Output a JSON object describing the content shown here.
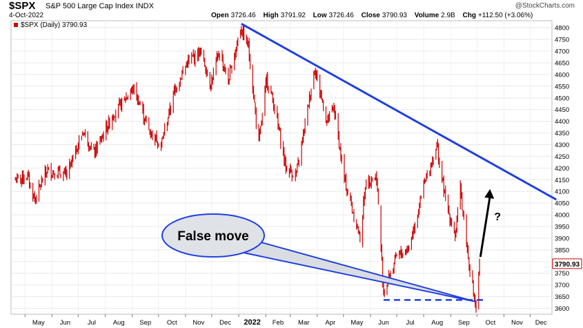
{
  "header": {
    "symbol": "$SPX",
    "description": "S&P 500 Large Cap Index INDX",
    "date": "4-Oct-2022",
    "brand": "@StockCharts.com",
    "ohlc": {
      "open_label": "Open",
      "open": "3726.46",
      "high_label": "High",
      "high": "3791.92",
      "low_label": "Low",
      "low": "3726.46",
      "close_label": "Close",
      "close": "3790.93",
      "volume_label": "Volume",
      "volume": "2.9B",
      "chg_label": "Chg",
      "chg": "+112.50 (+3.06%)"
    },
    "legend": "$SPX (Daily) 3790.93"
  },
  "chart_data": {
    "type": "ohlc-bar",
    "series_color": "#cc0000",
    "x_months": [
      "May",
      "Jun",
      "Jul",
      "Aug",
      "Sep",
      "Oct",
      "Nov",
      "Dec",
      "2022",
      "Feb",
      "Mar",
      "Apr",
      "May",
      "Jun",
      "Jul",
      "Aug",
      "Sep",
      "Oct",
      "Nov",
      "Dec"
    ],
    "y_ticks": [
      3600,
      3650,
      3700,
      3750,
      3800,
      3850,
      3900,
      3950,
      4000,
      4050,
      4100,
      4150,
      4200,
      4250,
      4300,
      4350,
      4400,
      4450,
      4500,
      4550,
      4600,
      4650,
      4700,
      4750,
      4800
    ],
    "y_range": [
      3575,
      4830
    ],
    "last_price_label": "3790.93",
    "price_path": [
      [
        "2021-04-20",
        4150
      ],
      [
        "2021-05-04",
        4165
      ],
      [
        "2021-05-12",
        4065
      ],
      [
        "2021-05-26",
        4190
      ],
      [
        "2021-06-18",
        4170
      ],
      [
        "2021-07-07",
        4360
      ],
      [
        "2021-07-19",
        4260
      ],
      [
        "2021-08-10",
        4430
      ],
      [
        "2021-09-02",
        4540
      ],
      [
        "2021-09-10",
        4470
      ],
      [
        "2021-09-20",
        4360
      ],
      [
        "2021-10-04",
        4300
      ],
      [
        "2021-10-20",
        4540
      ],
      [
        "2021-11-03",
        4650
      ],
      [
        "2021-11-18",
        4700
      ],
      [
        "2021-11-30",
        4560
      ],
      [
        "2021-12-10",
        4700
      ],
      [
        "2021-12-20",
        4570
      ],
      [
        "2022-01-03",
        4800
      ],
      [
        "2022-01-12",
        4720
      ],
      [
        "2022-01-24",
        4300
      ],
      [
        "2022-02-02",
        4580
      ],
      [
        "2022-02-10",
        4480
      ],
      [
        "2022-02-24",
        4200
      ],
      [
        "2022-03-08",
        4170
      ],
      [
        "2022-03-29",
        4630
      ],
      [
        "2022-04-12",
        4400
      ],
      [
        "2022-04-20",
        4460
      ],
      [
        "2022-05-02",
        4150
      ],
      [
        "2022-05-20",
        3900
      ],
      [
        "2022-05-27",
        4150
      ],
      [
        "2022-06-08",
        4160
      ],
      [
        "2022-06-16",
        3670
      ],
      [
        "2022-07-01",
        3820
      ],
      [
        "2022-07-15",
        3860
      ],
      [
        "2022-08-01",
        4120
      ],
      [
        "2022-08-16",
        4300
      ],
      [
        "2022-08-26",
        4060
      ],
      [
        "2022-09-06",
        3910
      ],
      [
        "2022-09-12",
        4110
      ],
      [
        "2022-09-20",
        3850
      ],
      [
        "2022-09-30",
        3585
      ],
      [
        "2022-10-04",
        3790
      ]
    ],
    "annotations": {
      "trendline": {
        "color": "#1f3fe0",
        "from": [
          "2022-01-04",
          4817
        ],
        "to": [
          "2022-12-31",
          4065
        ]
      },
      "support": {
        "color": "#1f3fe0",
        "style": "dashed",
        "from": [
          "2022-06-16",
          3636
        ],
        "to": [
          "2022-10-10",
          3636
        ]
      },
      "arrow_up": {
        "from": [
          "2022-10-05",
          3820
        ],
        "to": [
          "2022-10-16",
          4110
        ]
      },
      "question": "?",
      "callout_text": "False move",
      "callout_target": [
        "2022-09-30",
        3628
      ]
    }
  }
}
